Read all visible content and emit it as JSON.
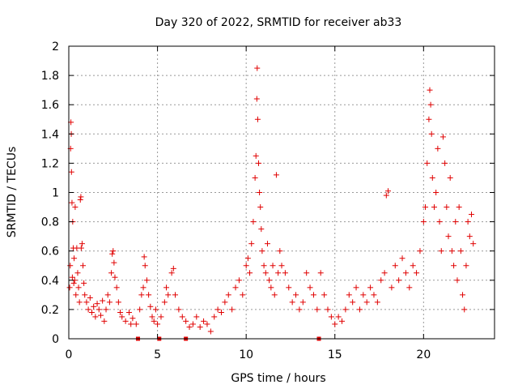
{
  "chart_data": {
    "type": "scatter",
    "title": "Day 320 of 2022, SRMTID for receiver ab33",
    "xlabel": "GPS time / hours",
    "ylabel": "SRMTID / TECUs",
    "xlim": [
      0,
      24
    ],
    "ylim": [
      0,
      2
    ],
    "xticks": [
      0,
      5,
      10,
      15,
      20
    ],
    "xtick_labels": [
      "0",
      "5",
      "10",
      "15",
      "20"
    ],
    "yticks": [
      0,
      0.2,
      0.4,
      0.6,
      0.8,
      1,
      1.2,
      1.4,
      1.6,
      1.8,
      2
    ],
    "ytick_labels": [
      "0",
      "0.2",
      "0.4",
      "0.6",
      "0.8",
      "1",
      "1.2",
      "1.4",
      "1.6",
      "1.8",
      "2"
    ],
    "grid": true,
    "marker": "+",
    "marker_color": "#e00000",
    "axis_marks": [
      3.9,
      5.1,
      6.6,
      14.1
    ],
    "series": [
      {
        "name": "SRMTID",
        "points": [
          [
            0.05,
            0.35
          ],
          [
            0.08,
            0.5
          ],
          [
            0.1,
            1.3
          ],
          [
            0.12,
            1.48
          ],
          [
            0.14,
            1.4
          ],
          [
            0.15,
            1.14
          ],
          [
            0.18,
            0.93
          ],
          [
            0.2,
            0.42
          ],
          [
            0.22,
            0.8
          ],
          [
            0.25,
            0.62
          ],
          [
            0.28,
            0.38
          ],
          [
            0.3,
            0.55
          ],
          [
            0.33,
            0.4
          ],
          [
            0.36,
            0.9
          ],
          [
            0.4,
            0.3
          ],
          [
            0.45,
            0.62
          ],
          [
            0.5,
            0.45
          ],
          [
            0.55,
            0.35
          ],
          [
            0.6,
            0.25
          ],
          [
            0.65,
            0.95
          ],
          [
            0.68,
            0.97
          ],
          [
            0.7,
            0.62
          ],
          [
            0.75,
            0.65
          ],
          [
            0.8,
            0.5
          ],
          [
            0.85,
            0.38
          ],
          [
            0.9,
            0.3
          ],
          [
            1.0,
            0.25
          ],
          [
            1.1,
            0.2
          ],
          [
            1.2,
            0.28
          ],
          [
            1.3,
            0.18
          ],
          [
            1.4,
            0.22
          ],
          [
            1.5,
            0.15
          ],
          [
            1.6,
            0.24
          ],
          [
            1.7,
            0.2
          ],
          [
            1.8,
            0.16
          ],
          [
            1.9,
            0.26
          ],
          [
            2.0,
            0.12
          ],
          [
            2.1,
            0.2
          ],
          [
            2.2,
            0.3
          ],
          [
            2.3,
            0.25
          ],
          [
            2.4,
            0.45
          ],
          [
            2.45,
            0.58
          ],
          [
            2.5,
            0.6
          ],
          [
            2.55,
            0.52
          ],
          [
            2.6,
            0.42
          ],
          [
            2.7,
            0.35
          ],
          [
            2.8,
            0.25
          ],
          [
            2.9,
            0.18
          ],
          [
            3.0,
            0.15
          ],
          [
            3.2,
            0.12
          ],
          [
            3.4,
            0.18
          ],
          [
            3.5,
            0.1
          ],
          [
            3.6,
            0.14
          ],
          [
            3.8,
            0.1
          ],
          [
            4.0,
            0.2
          ],
          [
            4.1,
            0.3
          ],
          [
            4.2,
            0.35
          ],
          [
            4.25,
            0.56
          ],
          [
            4.3,
            0.5
          ],
          [
            4.4,
            0.4
          ],
          [
            4.5,
            0.3
          ],
          [
            4.6,
            0.22
          ],
          [
            4.7,
            0.15
          ],
          [
            4.8,
            0.12
          ],
          [
            4.9,
            0.2
          ],
          [
            5.0,
            0.1
          ],
          [
            5.2,
            0.15
          ],
          [
            5.4,
            0.25
          ],
          [
            5.5,
            0.35
          ],
          [
            5.6,
            0.3
          ],
          [
            5.8,
            0.45
          ],
          [
            5.9,
            0.48
          ],
          [
            6.0,
            0.3
          ],
          [
            6.2,
            0.2
          ],
          [
            6.4,
            0.15
          ],
          [
            6.6,
            0.12
          ],
          [
            6.8,
            0.08
          ],
          [
            7.0,
            0.1
          ],
          [
            7.2,
            0.15
          ],
          [
            7.4,
            0.08
          ],
          [
            7.6,
            0.12
          ],
          [
            7.8,
            0.1
          ],
          [
            8.0,
            0.05
          ],
          [
            8.2,
            0.15
          ],
          [
            8.4,
            0.2
          ],
          [
            8.6,
            0.18
          ],
          [
            8.8,
            0.25
          ],
          [
            9.0,
            0.3
          ],
          [
            9.2,
            0.2
          ],
          [
            9.4,
            0.35
          ],
          [
            9.6,
            0.4
          ],
          [
            9.8,
            0.3
          ],
          [
            10.0,
            0.5
          ],
          [
            10.1,
            0.55
          ],
          [
            10.2,
            0.45
          ],
          [
            10.3,
            0.65
          ],
          [
            10.4,
            0.8
          ],
          [
            10.5,
            1.1
          ],
          [
            10.55,
            1.25
          ],
          [
            10.6,
            1.64
          ],
          [
            10.62,
            1.85
          ],
          [
            10.65,
            1.5
          ],
          [
            10.7,
            1.2
          ],
          [
            10.75,
            1.0
          ],
          [
            10.8,
            0.9
          ],
          [
            10.85,
            0.75
          ],
          [
            10.9,
            0.6
          ],
          [
            11.0,
            0.5
          ],
          [
            11.1,
            0.45
          ],
          [
            11.2,
            0.65
          ],
          [
            11.3,
            0.4
          ],
          [
            11.4,
            0.35
          ],
          [
            11.5,
            0.5
          ],
          [
            11.6,
            0.3
          ],
          [
            11.7,
            1.12
          ],
          [
            11.8,
            0.45
          ],
          [
            11.9,
            0.6
          ],
          [
            12.0,
            0.5
          ],
          [
            12.2,
            0.45
          ],
          [
            12.4,
            0.35
          ],
          [
            12.6,
            0.25
          ],
          [
            12.8,
            0.3
          ],
          [
            13.0,
            0.2
          ],
          [
            13.2,
            0.25
          ],
          [
            13.4,
            0.45
          ],
          [
            13.6,
            0.35
          ],
          [
            13.8,
            0.3
          ],
          [
            14.0,
            0.2
          ],
          [
            14.2,
            0.45
          ],
          [
            14.4,
            0.3
          ],
          [
            14.6,
            0.2
          ],
          [
            14.8,
            0.15
          ],
          [
            15.0,
            0.1
          ],
          [
            15.2,
            0.15
          ],
          [
            15.4,
            0.12
          ],
          [
            15.6,
            0.2
          ],
          [
            15.8,
            0.3
          ],
          [
            16.0,
            0.25
          ],
          [
            16.2,
            0.35
          ],
          [
            16.4,
            0.2
          ],
          [
            16.6,
            0.3
          ],
          [
            16.8,
            0.25
          ],
          [
            17.0,
            0.35
          ],
          [
            17.2,
            0.3
          ],
          [
            17.4,
            0.25
          ],
          [
            17.6,
            0.4
          ],
          [
            17.8,
            0.45
          ],
          [
            17.9,
            0.98
          ],
          [
            18.0,
            1.01
          ],
          [
            18.2,
            0.35
          ],
          [
            18.4,
            0.5
          ],
          [
            18.6,
            0.4
          ],
          [
            18.8,
            0.55
          ],
          [
            19.0,
            0.45
          ],
          [
            19.2,
            0.35
          ],
          [
            19.4,
            0.5
          ],
          [
            19.6,
            0.45
          ],
          [
            19.8,
            0.6
          ],
          [
            20.0,
            0.8
          ],
          [
            20.1,
            0.9
          ],
          [
            20.2,
            1.2
          ],
          [
            20.3,
            1.5
          ],
          [
            20.35,
            1.7
          ],
          [
            20.4,
            1.6
          ],
          [
            20.45,
            1.4
          ],
          [
            20.5,
            1.1
          ],
          [
            20.6,
            0.9
          ],
          [
            20.7,
            1.0
          ],
          [
            20.8,
            1.3
          ],
          [
            20.9,
            0.8
          ],
          [
            21.0,
            0.6
          ],
          [
            21.1,
            1.38
          ],
          [
            21.2,
            1.2
          ],
          [
            21.3,
            0.9
          ],
          [
            21.4,
            0.7
          ],
          [
            21.5,
            1.1
          ],
          [
            21.6,
            0.6
          ],
          [
            21.7,
            0.5
          ],
          [
            21.8,
            0.8
          ],
          [
            21.9,
            0.4
          ],
          [
            22.0,
            0.9
          ],
          [
            22.1,
            0.6
          ],
          [
            22.2,
            0.3
          ],
          [
            22.3,
            0.2
          ],
          [
            22.4,
            0.5
          ],
          [
            22.5,
            0.8
          ],
          [
            22.6,
            0.7
          ],
          [
            22.7,
            0.85
          ],
          [
            22.8,
            0.65
          ]
        ]
      }
    ]
  }
}
